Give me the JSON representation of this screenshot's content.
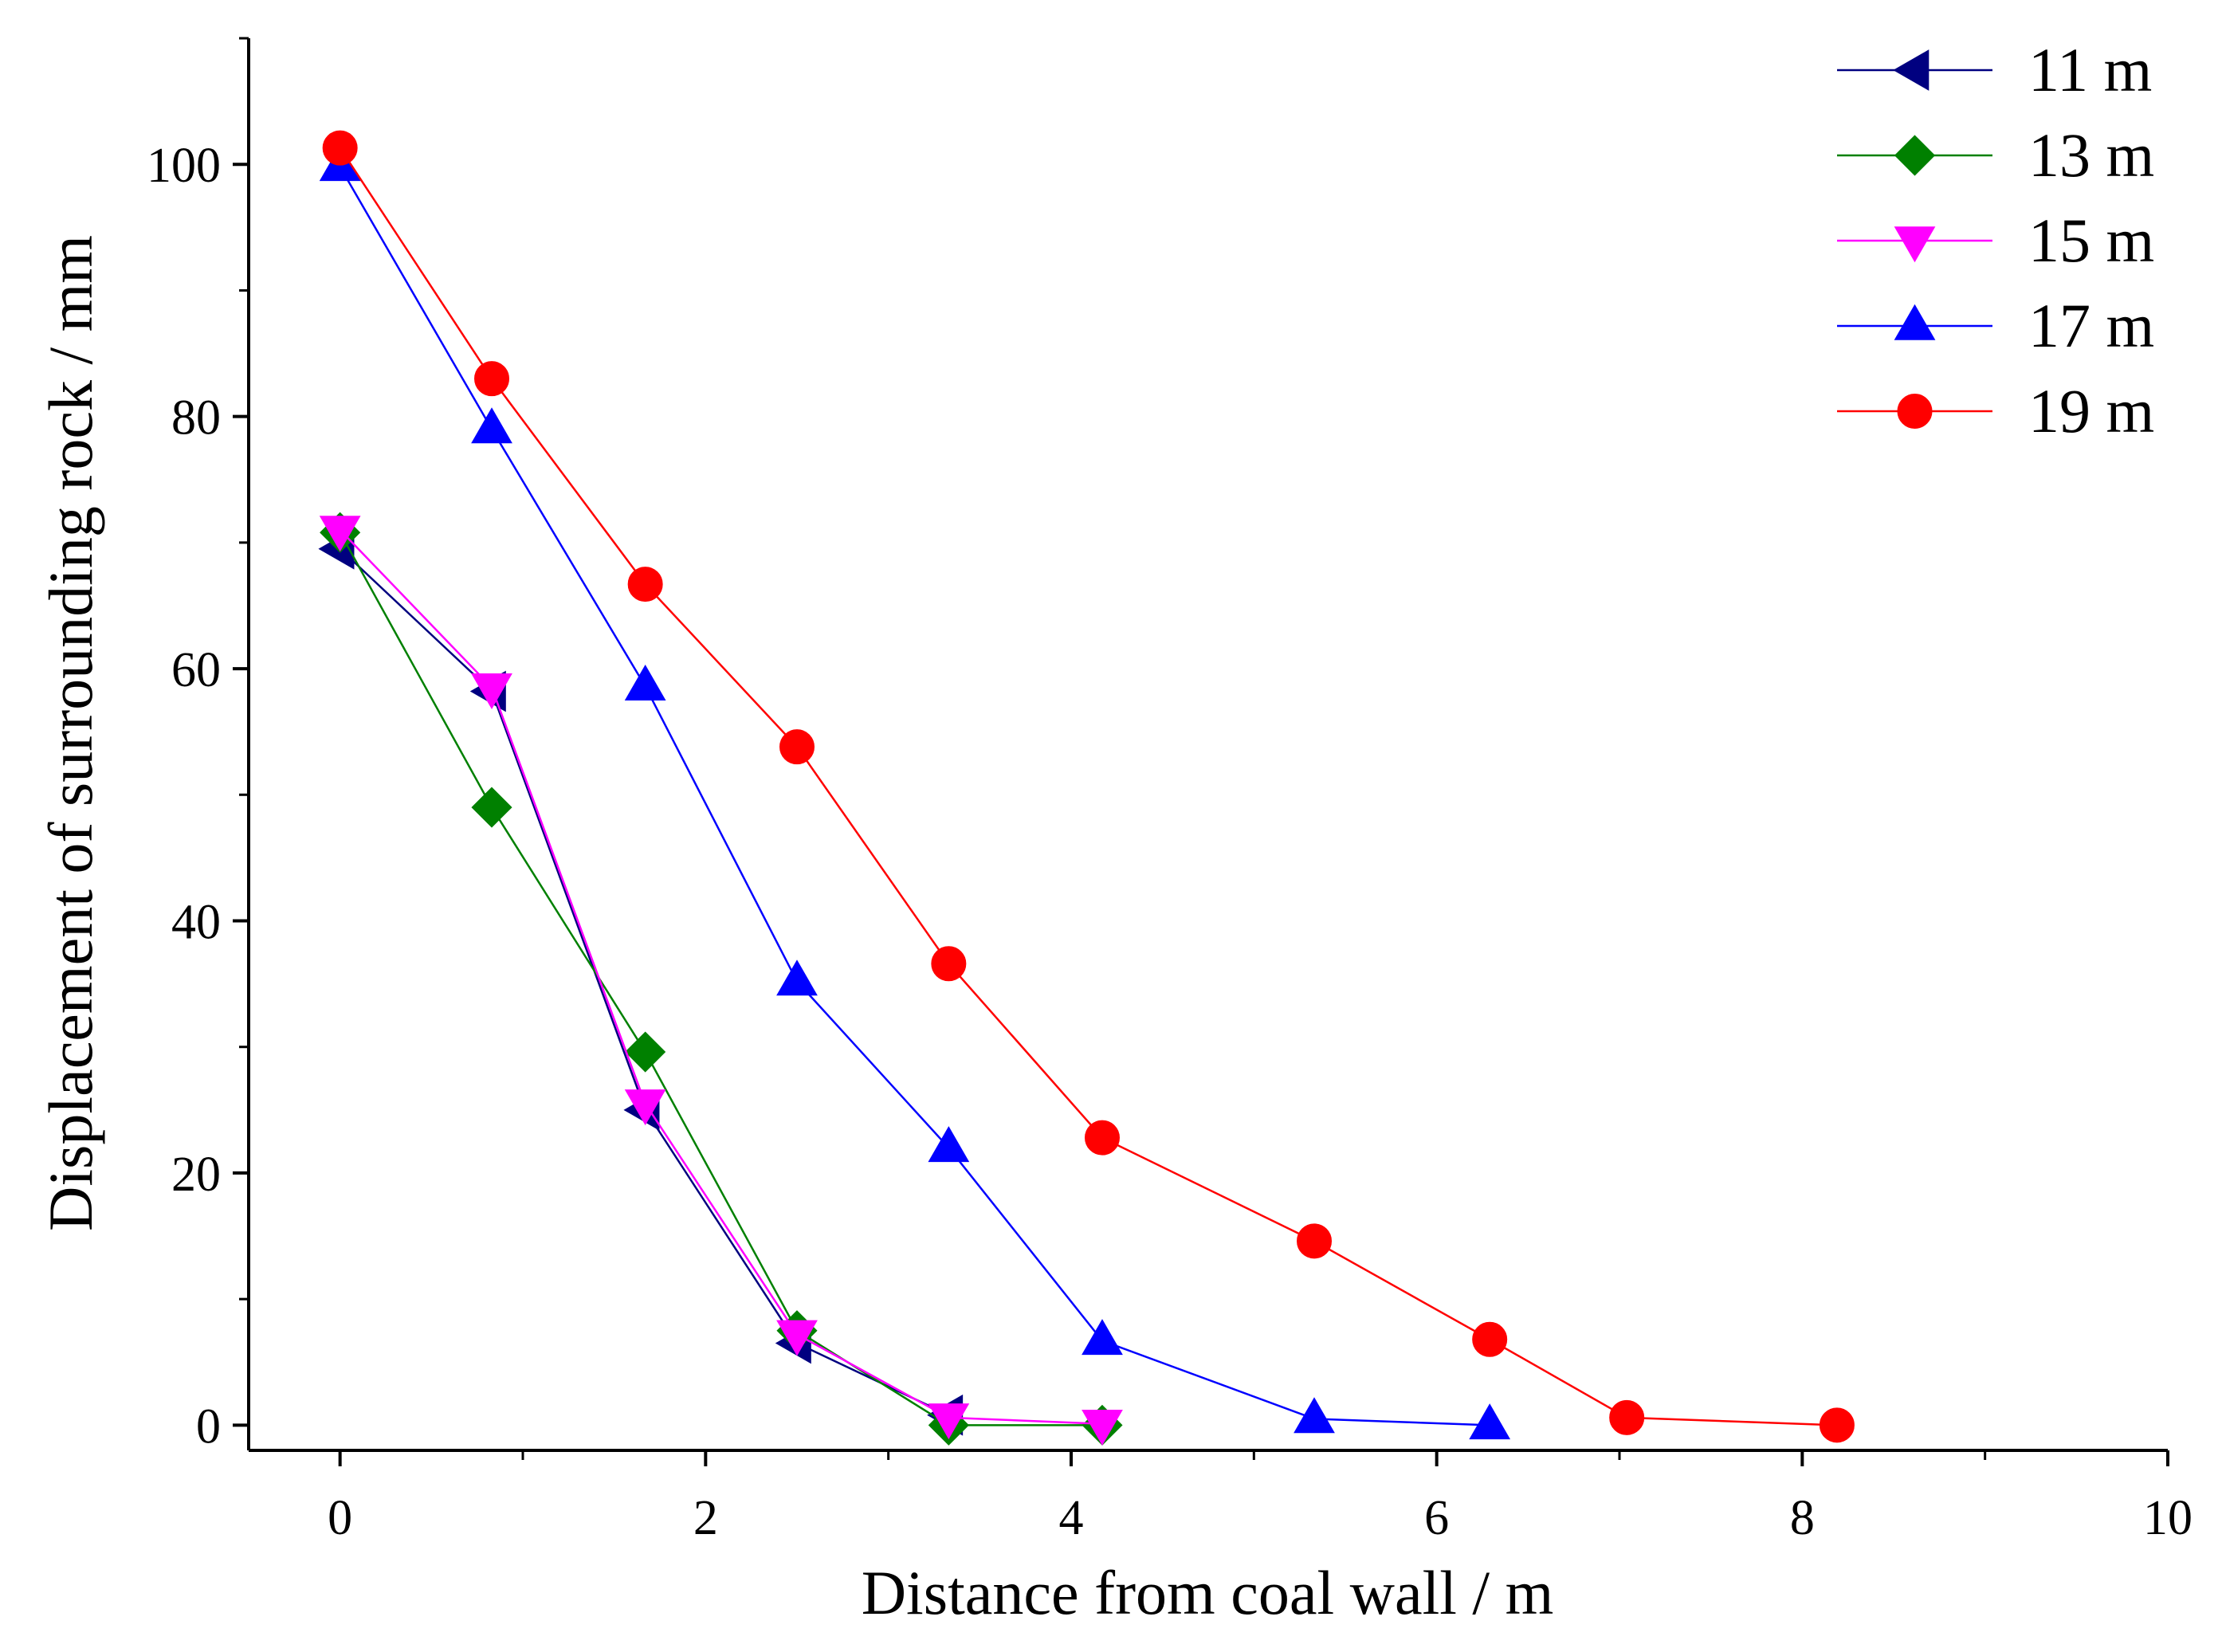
{
  "chart_data": {
    "type": "line",
    "title": "",
    "xlabel": "Distance from coal wall / m",
    "ylabel": "Displacement of surrounding rock / mm",
    "xlim": [
      -0.5,
      10
    ],
    "ylim": [
      -2,
      110
    ],
    "xticks": [
      0,
      2,
      4,
      6,
      8,
      10
    ],
    "xtick_labels": [
      "0",
      "2",
      "4",
      "6",
      "8",
      "10"
    ],
    "yticks": [
      0,
      20,
      40,
      60,
      80,
      100
    ],
    "ytick_labels": [
      "0",
      "20",
      "40",
      "60",
      "80",
      "100"
    ],
    "grid": false,
    "legend_position": "top-right",
    "series": [
      {
        "name": "11 m",
        "color": "#000080",
        "marker": "triangle-left",
        "x": [
          0,
          0.83,
          1.67,
          2.5,
          3.33
        ],
        "y": [
          69.5,
          58.2,
          25.0,
          6.5,
          0.8
        ]
      },
      {
        "name": "13 m",
        "color": "#008000",
        "marker": "diamond",
        "x": [
          0,
          0.83,
          1.67,
          2.5,
          3.33,
          4.17
        ],
        "y": [
          70.8,
          49.0,
          29.6,
          7.5,
          0.0,
          0.0
        ]
      },
      {
        "name": "15 m",
        "color": "#ff00ff",
        "marker": "triangle-down",
        "x": [
          0,
          0.83,
          1.67,
          2.5,
          3.33,
          4.17
        ],
        "y": [
          71.0,
          58.5,
          25.5,
          7.2,
          0.6,
          0.1
        ]
      },
      {
        "name": "17 m",
        "color": "#0000ff",
        "marker": "triangle-up",
        "x": [
          0,
          0.83,
          1.67,
          2.5,
          3.33,
          4.17,
          5.33,
          6.29
        ],
        "y": [
          99.8,
          79.0,
          58.6,
          35.2,
          22.0,
          6.7,
          0.5,
          0.0
        ]
      },
      {
        "name": "19 m",
        "color": "#ff0000",
        "marker": "circle",
        "x": [
          0,
          0.83,
          1.67,
          2.5,
          3.33,
          4.17,
          5.33,
          6.29,
          7.04,
          8.19
        ],
        "y": [
          101.3,
          83.0,
          66.7,
          53.8,
          36.6,
          22.8,
          14.6,
          6.8,
          0.6,
          0.0
        ]
      }
    ]
  }
}
